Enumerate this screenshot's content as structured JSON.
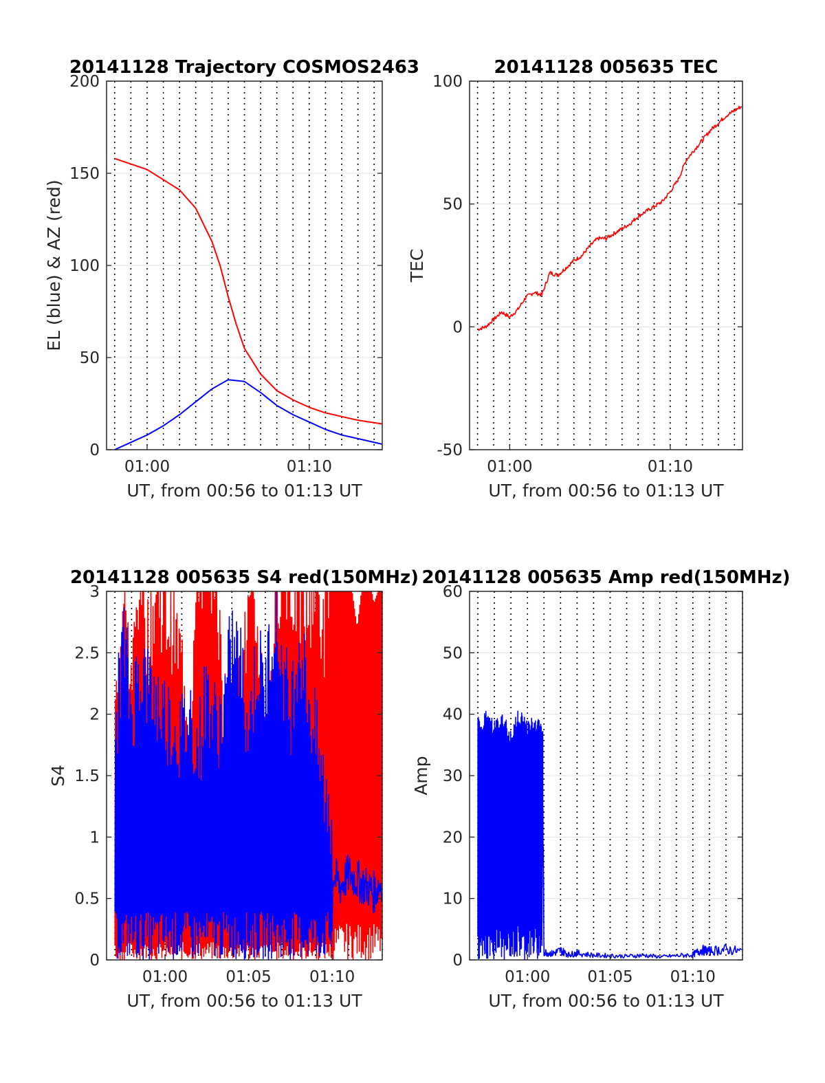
{
  "figure_date": "20141128",
  "chart_data": [
    {
      "id": "trajectory",
      "type": "line",
      "title": "20141128 Trajectory COSMOS2463",
      "xlabel": "UT, from 00:56 to 01:13 UT",
      "ylabel": "EL (blue) & AZ (red)",
      "xlim": [
        57.5,
        74.5
      ],
      "ylim": [
        0,
        200
      ],
      "yticks": [
        0,
        50,
        100,
        150,
        200
      ],
      "xticks": [
        {
          "value": 60,
          "label": "01:00"
        },
        {
          "value": 70,
          "label": "01:10"
        }
      ],
      "grid": "x dotted, y light",
      "series": [
        {
          "name": "AZ",
          "color": "#ff0000",
          "x": [
            58,
            60,
            62,
            63,
            64,
            64.5,
            65,
            65.5,
            66,
            67,
            68,
            69,
            70,
            71,
            72,
            73,
            74.5
          ],
          "values": [
            158,
            152,
            141,
            131,
            113,
            100,
            83,
            68,
            55,
            41,
            32,
            27,
            23,
            20,
            18,
            16,
            14
          ]
        },
        {
          "name": "EL",
          "color": "#0000ff",
          "x": [
            58,
            59,
            60,
            61,
            62,
            63,
            64,
            65,
            66,
            67,
            68,
            69,
            70,
            71,
            72,
            73,
            74.5
          ],
          "values": [
            0,
            4,
            8,
            13,
            19,
            26,
            33,
            38,
            37,
            31,
            24,
            19,
            15,
            11,
            8,
            6,
            3
          ]
        }
      ]
    },
    {
      "id": "tec",
      "type": "line",
      "title": "20141128 005635 TEC",
      "xlabel": "UT, from 00:56 to 01:13 UT",
      "ylabel": "TEC",
      "xlim": [
        57.5,
        74.5
      ],
      "ylim": [
        -50,
        100
      ],
      "yticks": [
        -50,
        0,
        50,
        100
      ],
      "xticks": [
        {
          "value": 60,
          "label": "01:00"
        },
        {
          "value": 70,
          "label": "01:10"
        }
      ],
      "grid": "x dotted, y light",
      "series": [
        {
          "name": "TEC",
          "color": "#ff0000",
          "x": [
            58,
            58.5,
            59,
            59.5,
            60,
            60.5,
            61,
            61.5,
            62,
            62.5,
            63,
            63.5,
            64,
            64.5,
            65,
            65.5,
            66,
            66.5,
            67,
            67.5,
            68,
            68.5,
            69,
            69.5,
            70,
            70.5,
            71,
            71.5,
            72,
            72.5,
            73,
            73.5,
            74,
            74.5
          ],
          "values": [
            -1,
            0,
            3,
            6,
            4,
            7,
            12,
            14,
            13,
            22,
            21,
            24,
            27,
            29,
            33,
            36,
            36,
            38,
            40,
            42,
            45,
            47,
            49,
            51,
            55,
            60,
            68,
            72,
            76,
            80,
            83,
            86,
            88,
            90
          ]
        }
      ]
    },
    {
      "id": "s4",
      "type": "line",
      "title": "20141128 005635 S4 red(150MHz)",
      "xlabel": "UT, from 00:56 to 01:13 UT",
      "ylabel": "S4",
      "xlim": [
        56.5,
        73
      ],
      "ylim": [
        0,
        3
      ],
      "yticks": [
        0,
        0.5,
        1,
        1.5,
        2,
        2.5,
        3
      ],
      "xticks": [
        {
          "value": 60,
          "label": "01:00"
        },
        {
          "value": 65,
          "label": "01:05"
        },
        {
          "value": 70,
          "label": "01:10"
        }
      ],
      "grid": "x dotted, y light",
      "series": [
        {
          "name": "red",
          "color": "#ff0000",
          "x": [
            57,
            57.5,
            58,
            58.5,
            59,
            59.5,
            60,
            60.5,
            61,
            61.5,
            62,
            62.5,
            63,
            63.5,
            64,
            64.5,
            65,
            65.5,
            66,
            66.5,
            67,
            67.5,
            68,
            68.5,
            69,
            69.5,
            70,
            70.5,
            71,
            71.5,
            72,
            72.5,
            73
          ],
          "values": [
            1.5,
            2.5,
            1.8,
            2.8,
            2.2,
            2.6,
            2.4,
            2.3,
            2.0,
            1.6,
            2.8,
            2.7,
            2.9,
            1.6,
            2.0,
            1.7,
            2.4,
            2.3,
            1.6,
            2.2,
            2.9,
            2.6,
            2.5,
            2.4,
            2.7,
            2.2,
            2.9,
            2.6,
            2.8,
            2.3,
            2.9,
            2.5,
            2.7
          ]
        },
        {
          "name": "blue",
          "color": "#0000ff",
          "x": [
            57,
            57.5,
            58,
            58.5,
            59,
            59.5,
            60,
            60.5,
            61,
            61.5,
            62,
            62.5,
            63,
            63.5,
            64,
            64.5,
            65,
            65.5,
            66,
            66.5,
            67,
            67.5,
            68,
            68.5,
            69,
            69.5,
            70,
            70.5,
            71,
            71.5,
            72,
            72.5,
            73
          ],
          "values": [
            1.4,
            2.2,
            1.6,
            2.0,
            1.8,
            1.7,
            1.6,
            1.5,
            1.4,
            1.6,
            1.3,
            1.8,
            1.5,
            1.6,
            2.2,
            2.0,
            1.5,
            2.0,
            1.8,
            2.4,
            2.0,
            1.6,
            2.2,
            1.8,
            1.4,
            1.0,
            0.7,
            0.6,
            0.7,
            0.65,
            0.6,
            0.55,
            0.65
          ]
        }
      ]
    },
    {
      "id": "amp",
      "type": "line",
      "title": "20141128 005635 Amp red(150MHz)",
      "xlabel": "UT, from 00:56 to 01:13 UT",
      "ylabel": "Amp",
      "xlim": [
        56.5,
        73
      ],
      "ylim": [
        0,
        60
      ],
      "yticks": [
        0,
        10,
        20,
        30,
        40,
        50,
        60
      ],
      "xticks": [
        {
          "value": 60,
          "label": "01:00"
        },
        {
          "value": 65,
          "label": "01:05"
        },
        {
          "value": 70,
          "label": "01:10"
        }
      ],
      "grid": "x dotted, y light",
      "series": [
        {
          "name": "Amp",
          "color": "#0000ff",
          "x": [
            57,
            57.2,
            57.5,
            58,
            58.5,
            59,
            59.5,
            60,
            60.5,
            60.9,
            61,
            61.5,
            62,
            62.5,
            63,
            64,
            65,
            66,
            67,
            68,
            69,
            70,
            70.5,
            71,
            72,
            73
          ],
          "values": [
            40,
            38,
            41,
            39,
            40,
            38,
            41,
            39,
            40,
            38,
            1.5,
            1.2,
            1.8,
            1.0,
            1.3,
            0.9,
            0.8,
            0.7,
            0.9,
            0.6,
            0.8,
            1.0,
            1.9,
            1.7,
            2.0,
            1.6
          ]
        }
      ]
    }
  ]
}
